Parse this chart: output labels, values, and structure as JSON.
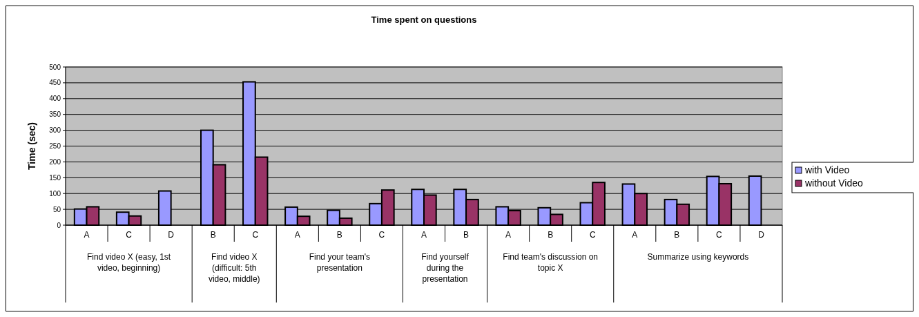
{
  "chart_data": {
    "type": "bar",
    "title": "Time spent on questions",
    "ylabel": "Time (sec)",
    "categories": [
      "A",
      "C",
      "D",
      "B",
      "C",
      "A",
      "B",
      "C",
      "A",
      "B",
      "A",
      "B",
      "C",
      "A",
      "B",
      "C",
      "D"
    ],
    "annotations": [
      "Find video X (easy, 1st video, beginning)",
      "Find video X (difficult: 5th video, middle)",
      "Find your team's presentation",
      "Find yourself during the presentation",
      "Find team's discussion on topic X",
      "Summarize using keywords"
    ],
    "series": [
      {
        "name": "with Video",
        "color": "#9999ff",
        "values": [
          51,
          41,
          108,
          300,
          453,
          57,
          47,
          68,
          113,
          113,
          58,
          55,
          71,
          130,
          81,
          154,
          155
        ]
      },
      {
        "name": "without Video",
        "color": "#993366",
        "values": [
          58,
          29,
          null,
          191,
          215,
          28,
          22,
          111,
          95,
          81,
          46,
          34,
          135,
          100,
          66,
          131,
          null
        ]
      }
    ],
    "ylim": [
      0,
      500
    ],
    "yticks": [
      0,
      50,
      100,
      150,
      200,
      250,
      300,
      350,
      400,
      450,
      500
    ],
    "grid": "y",
    "legend": "right"
  }
}
